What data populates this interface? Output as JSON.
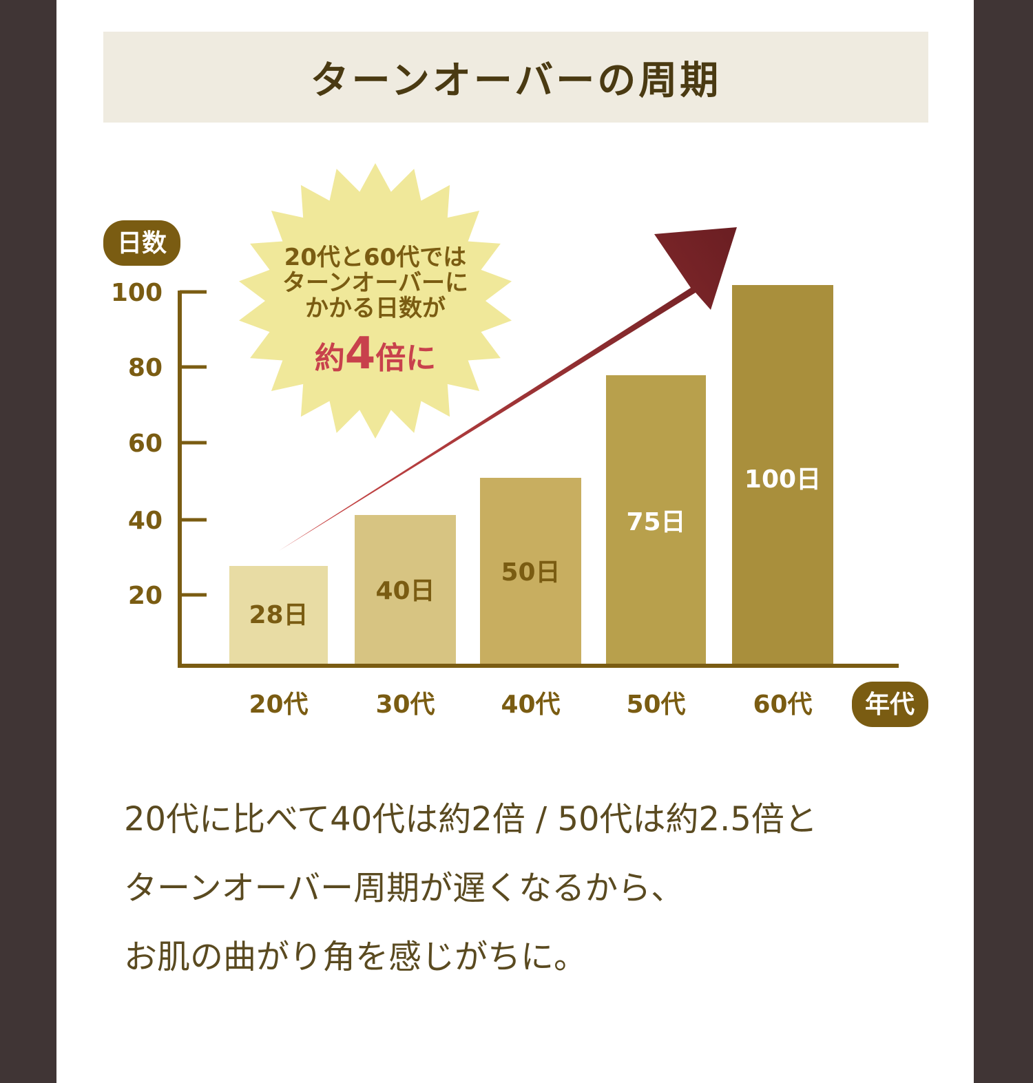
{
  "title": "ターンオーバーの周期",
  "badge": {
    "line1": "20代と60代では",
    "line2": "ターンオーバーに",
    "line3": "かかる日数が",
    "emph_pre": "約",
    "emph_num": "4",
    "emph_post": "倍に"
  },
  "colors": {
    "axis": "#7a5c12",
    "pill": "#7a5c12",
    "badge": "#f0e89a",
    "arrow_start": "#d24a4a",
    "arrow_end": "#6a1e22",
    "emph": "#c8414c",
    "bars": [
      "#e8dca4",
      "#d7c482",
      "#c8ae60",
      "#b8a04c",
      "#a98f3c"
    ],
    "bar_label_dark": "#7a5c12",
    "bar_label_light": "#ffffff"
  },
  "chart_data": {
    "type": "bar",
    "categories": [
      "20代",
      "30代",
      "40代",
      "50代",
      "60代"
    ],
    "values": [
      28,
      40,
      50,
      75,
      100
    ],
    "value_labels": [
      "28日",
      "40日",
      "50日",
      "75日",
      "100日"
    ],
    "ylabel": "日数",
    "xlabel": "年代",
    "yticks": [
      20,
      40,
      60,
      80,
      100
    ],
    "ylim": [
      0,
      100
    ]
  },
  "caption": {
    "line1": "20代に比べて40代は約2倍 / 50代は約2.5倍と",
    "line2": "ターンオーバー周期が遅くなるから、",
    "line3": "お肌の曲がり角を感じがちに。"
  }
}
